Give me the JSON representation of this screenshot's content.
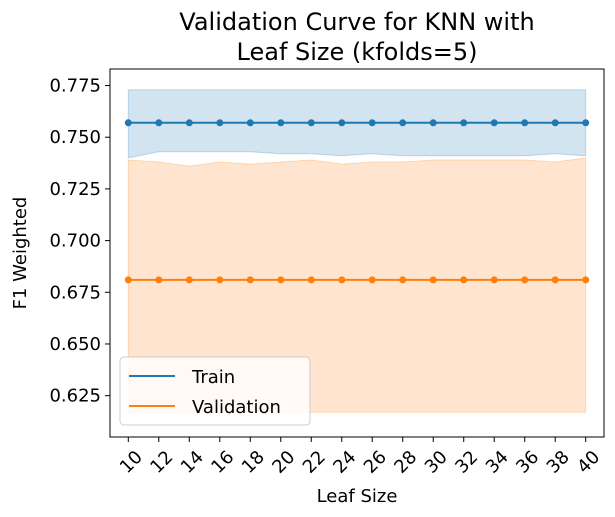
{
  "chart_data": {
    "type": "line",
    "title_lines": [
      "Validation Curve for KNN with",
      "Leaf Size (kfolds=5)"
    ],
    "xlabel": "Leaf Size",
    "ylabel": "F1 Weighted",
    "x": [
      10,
      12,
      14,
      16,
      18,
      20,
      22,
      24,
      26,
      28,
      30,
      32,
      34,
      36,
      38,
      40
    ],
    "xlim": [
      8.8,
      41.2
    ],
    "ylim": [
      0.605,
      0.783
    ],
    "yticks": [
      0.625,
      0.65,
      0.675,
      0.7,
      0.725,
      0.75,
      0.775
    ],
    "ytick_labels": [
      "0.625",
      "0.650",
      "0.675",
      "0.700",
      "0.725",
      "0.750",
      "0.775"
    ],
    "grid": false,
    "legend_position": "lower-left",
    "series": [
      {
        "name": "Train",
        "color": "#1f77b4",
        "values": [
          0.757,
          0.757,
          0.757,
          0.757,
          0.757,
          0.757,
          0.757,
          0.757,
          0.757,
          0.757,
          0.757,
          0.757,
          0.757,
          0.757,
          0.757,
          0.757
        ],
        "band_upper": [
          0.773,
          0.773,
          0.773,
          0.773,
          0.773,
          0.773,
          0.773,
          0.773,
          0.773,
          0.773,
          0.773,
          0.773,
          0.773,
          0.773,
          0.773,
          0.773
        ],
        "band_lower": [
          0.74,
          0.743,
          0.743,
          0.743,
          0.743,
          0.742,
          0.742,
          0.741,
          0.742,
          0.741,
          0.741,
          0.741,
          0.741,
          0.741,
          0.742,
          0.741
        ]
      },
      {
        "name": "Validation",
        "color": "#ff7f0e",
        "values": [
          0.681,
          0.681,
          0.681,
          0.681,
          0.681,
          0.681,
          0.681,
          0.681,
          0.681,
          0.681,
          0.681,
          0.681,
          0.681,
          0.681,
          0.681,
          0.681
        ],
        "band_upper": [
          0.739,
          0.738,
          0.736,
          0.738,
          0.737,
          0.738,
          0.739,
          0.737,
          0.738,
          0.738,
          0.739,
          0.739,
          0.739,
          0.739,
          0.738,
          0.74
        ],
        "band_lower": [
          0.617,
          0.617,
          0.617,
          0.617,
          0.617,
          0.617,
          0.617,
          0.617,
          0.617,
          0.617,
          0.617,
          0.617,
          0.617,
          0.617,
          0.617,
          0.617
        ]
      }
    ]
  }
}
